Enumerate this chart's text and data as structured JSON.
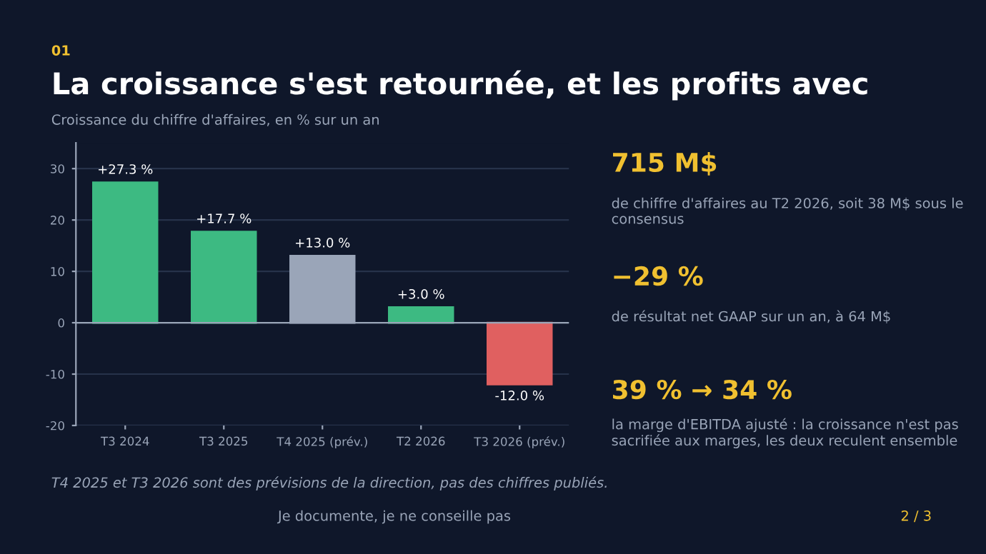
{
  "chart_data": {
    "type": "bar",
    "title": "La croissance s'est retournée, et les profits avec",
    "subtitle": "Croissance du chiffre d'affaires, en % sur un an",
    "categories": [
      "T3 2024",
      "T3 2025",
      "T4 2025 (prév.)",
      "T2 2026",
      "T3 2026 (prév.)"
    ],
    "values": [
      27.3,
      17.7,
      13.0,
      3.0,
      -12.0
    ],
    "colors": [
      "#3dba82",
      "#3dba82",
      "#9aa5b8",
      "#3dba82",
      "#e06060"
    ],
    "value_labels": [
      "+27.3 %",
      "+17.7 %",
      "+13.0 %",
      "+3.0 %",
      "-12.0 %"
    ],
    "ylim": [
      -20,
      35
    ],
    "yticks": [
      -20,
      -10,
      0,
      10,
      20,
      30
    ],
    "grid": "y",
    "annotations": [
      "01",
      "715 M$",
      "de chiffre d'affaires au T2 2026, soit 38 M$ sous le consensus",
      "−29 %",
      "de résultat net GAAP sur un an, à 64 M$",
      "39 % → 34 %",
      "la marge d'EBITDA ajusté : la croissance n'est pas sacrifiée aux marges, les deux reculent ensemble",
      "T4 2025 et T3 2026 sont des prévisions de la direction, pas des chiffres publiés.",
      "Je documente, je ne conseille pas",
      "2 / 3"
    ]
  }
}
